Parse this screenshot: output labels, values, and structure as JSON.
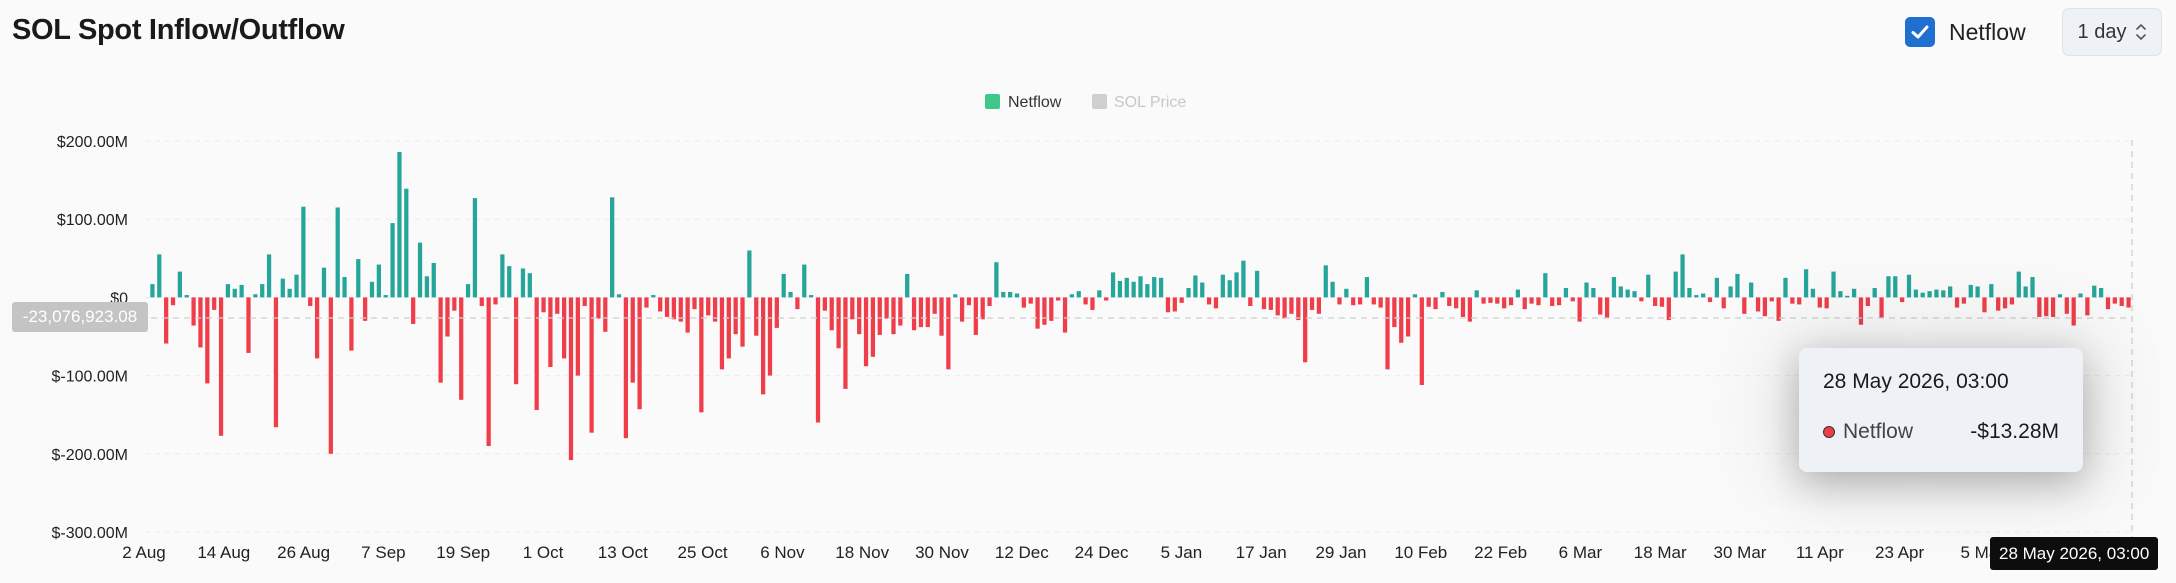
{
  "title": "SOL Spot Inflow/Outflow",
  "controls": {
    "netflow_label": "Netflow",
    "netflow_checked": true,
    "interval": "1 day"
  },
  "colors": {
    "positive": "#26a69a",
    "negative": "#ef3e4a",
    "legend_netflow": "#3ec98a",
    "legend_price": "#cfcfcf",
    "checkbox": "#1f6fd1"
  },
  "tooltip": {
    "date": "28 May 2026, 03:00",
    "series": "Netflow",
    "value": "-$13.28M"
  },
  "cursor_label": "28 May 2026, 03:00",
  "current_value_label": "-23,076,923.08",
  "chart_data": {
    "type": "bar",
    "title": "SOL Spot Inflow/Outflow",
    "legend": [
      {
        "name": "Netflow",
        "active": true
      },
      {
        "name": "SOL Price",
        "active": false
      }
    ],
    "legend_position": "top-center",
    "unit": "USD millions",
    "yticks": [
      "$200.00M",
      "$100.00M",
      "$0",
      "$-100.00M",
      "$-200.00M",
      "$-300.00M"
    ],
    "ylim": [
      -300,
      200
    ],
    "grid": true,
    "xticks": [
      "2 Aug",
      "14 Aug",
      "26 Aug",
      "7 Sep",
      "19 Sep",
      "1 Oct",
      "13 Oct",
      "25 Oct",
      "6 Nov",
      "18 Nov",
      "30 Nov",
      "12 Dec",
      "24 Dec",
      "5 Jan",
      "17 Jan",
      "29 Jan",
      "10 Feb",
      "22 Feb",
      "6 Mar",
      "18 Mar",
      "30 Mar",
      "11 Apr",
      "23 Apr",
      "5 Ma"
    ],
    "series": [
      {
        "name": "Netflow",
        "values": [
          17,
          55,
          -59,
          -10,
          33,
          3,
          -36,
          -64,
          -110,
          -16,
          -177,
          17,
          11,
          16,
          -71,
          4,
          17,
          55,
          -166,
          24,
          11,
          29,
          116,
          -11,
          -78,
          38,
          -200,
          115,
          26,
          -68,
          49,
          -30,
          20,
          42,
          3,
          95,
          186,
          139,
          -34,
          70,
          27,
          44,
          -109,
          -50,
          -17,
          -131,
          17,
          127,
          -11,
          -190,
          -9,
          55,
          40,
          -111,
          37,
          31,
          -144,
          -19,
          -89,
          -21,
          -78,
          -208,
          -100,
          -11,
          -173,
          -27,
          -44,
          128,
          4,
          -180,
          -109,
          -143,
          -13,
          3,
          -18,
          -25,
          -28,
          -31,
          -45,
          -15,
          -147,
          -23,
          -31,
          -92,
          -78,
          -47,
          -63,
          60,
          -49,
          -124,
          -100,
          -39,
          30,
          7,
          -15,
          42,
          3,
          -160,
          -17,
          -42,
          -65,
          -117,
          -28,
          -47,
          -88,
          -76,
          -48,
          -27,
          -47,
          -36,
          30,
          -42,
          -38,
          -38,
          -21,
          -49,
          -92,
          4,
          -31,
          -10,
          -48,
          -28,
          -11,
          45,
          7,
          7,
          5,
          -13,
          -8,
          -40,
          -35,
          -30,
          -4,
          -45,
          4,
          8,
          -9,
          -16,
          9,
          -4,
          32,
          21,
          25,
          20,
          27,
          17,
          26,
          25,
          -19,
          -18,
          -7,
          12,
          28,
          19,
          -9,
          -14,
          29,
          22,
          32,
          47,
          -11,
          34,
          -15,
          -16,
          -23,
          -27,
          -21,
          -29,
          -83,
          -16,
          -21,
          41,
          20,
          -9,
          11,
          -10,
          -9,
          26,
          -9,
          -13,
          -92,
          -38,
          -58,
          -50,
          4,
          -112,
          -12,
          -15,
          7,
          -11,
          -14,
          -25,
          -31,
          9,
          -8,
          -7,
          -8,
          -14,
          -10,
          10,
          -15,
          -8,
          -10,
          31,
          -11,
          -10,
          12,
          -5,
          -31,
          19,
          12,
          -22,
          -26,
          26,
          14,
          10,
          8,
          -5,
          29,
          -11,
          -12,
          -29,
          33,
          55,
          12,
          3,
          5,
          -6,
          25,
          -14,
          14,
          30,
          -21,
          19,
          -18,
          -24,
          -5,
          -30,
          25,
          -8,
          -9,
          36,
          11,
          -13,
          -14,
          33,
          8,
          2,
          11,
          -35,
          -11,
          12,
          -26,
          27,
          27,
          -6,
          29,
          10,
          6,
          8,
          10,
          9,
          14,
          -13,
          -8,
          16,
          14,
          -19,
          17,
          -17,
          -14,
          -9,
          33,
          14,
          26,
          -25,
          -24,
          -25,
          4,
          -21,
          -36,
          5,
          -23,
          15,
          12,
          -15,
          -8,
          -11,
          -13
        ]
      }
    ]
  }
}
